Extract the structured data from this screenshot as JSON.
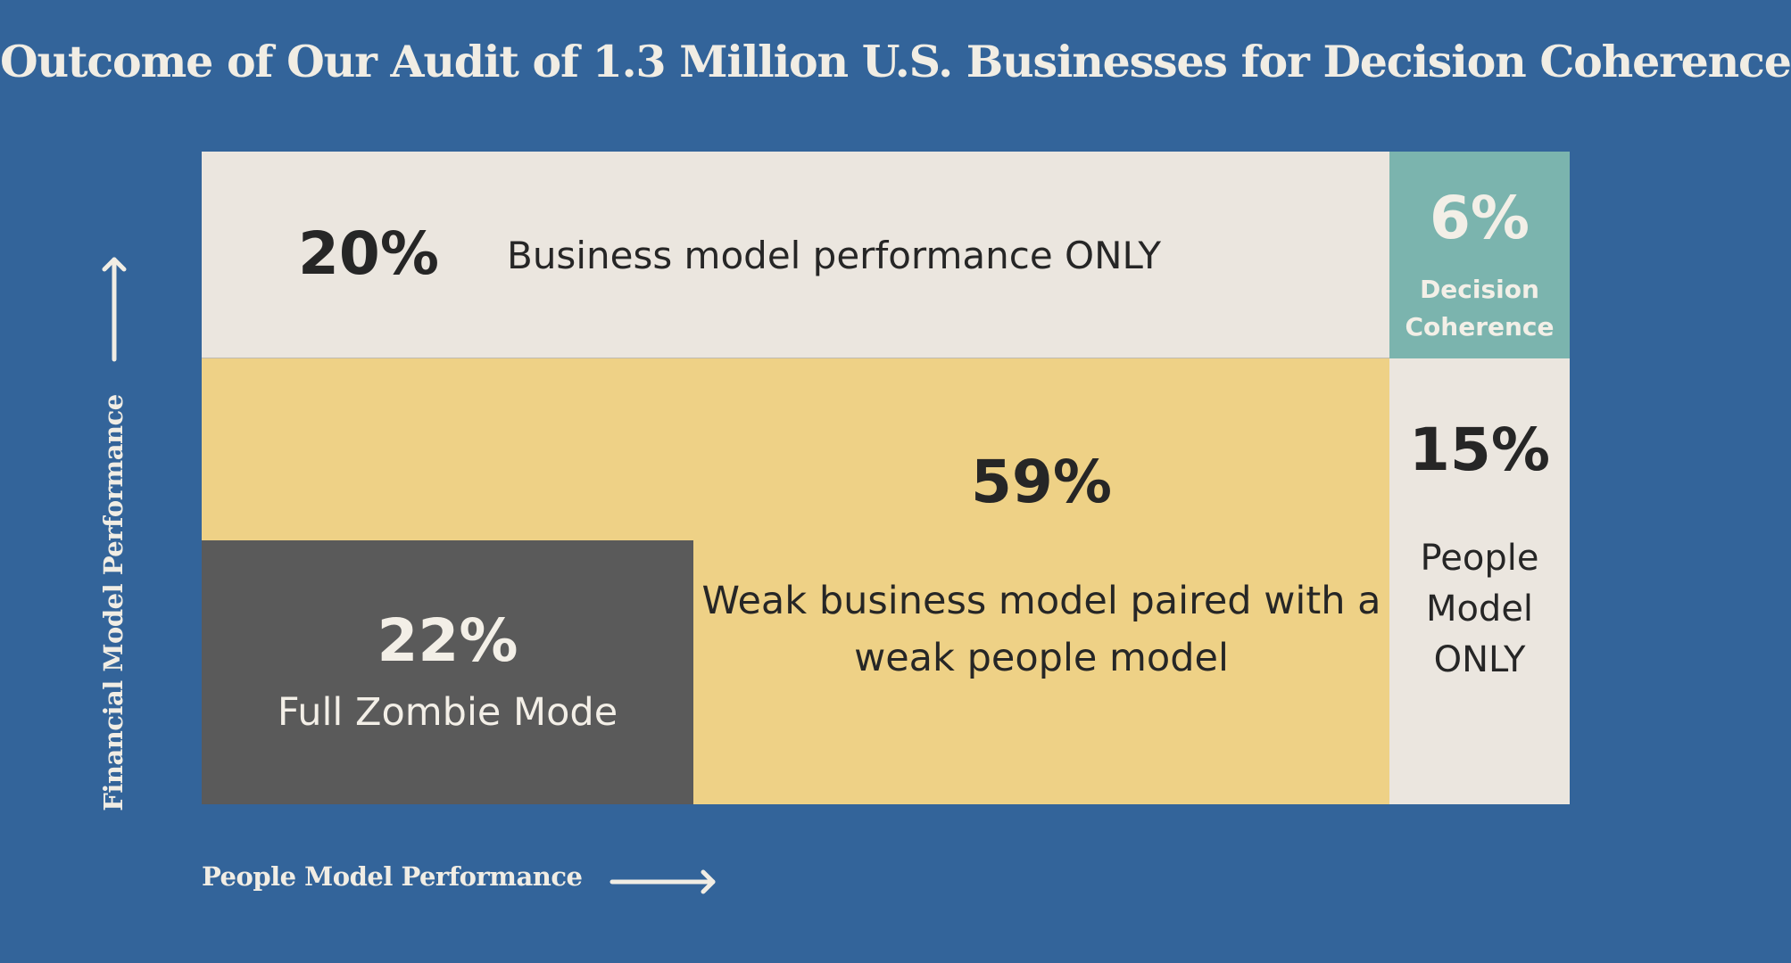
{
  "title": "Outcome of Our Audit of 1.3 Million U.S. Businesses for Decision Coherence",
  "axes": {
    "y_label": "Financial Model Performance",
    "x_label": "People Model Performance"
  },
  "segments": {
    "business_only": {
      "percent": "20%",
      "label": "Business model performance ONLY"
    },
    "decision_coherence": {
      "percent": "6%",
      "label": "Decision Coherence"
    },
    "weak_both": {
      "percent": "59%",
      "label": "Weak business model paired with a weak people model"
    },
    "zombie": {
      "percent": "22%",
      "label": "Full Zombie Mode"
    },
    "people_only": {
      "percent": "15%",
      "label": "People Model ONLY"
    }
  },
  "colors": {
    "background": "#33649a",
    "light": "#ebe6df",
    "teal": "#7bb4ae",
    "yellow": "#eed186",
    "dark": "#5a5a5a"
  }
}
